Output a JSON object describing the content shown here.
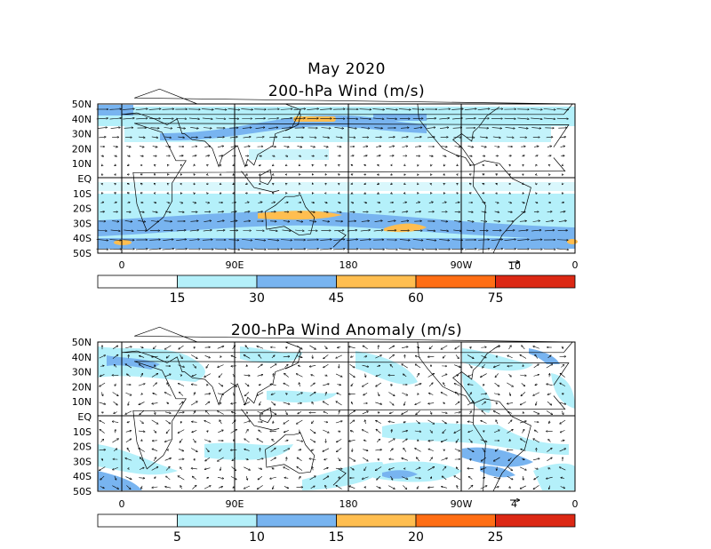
{
  "header": {
    "date": "May 2020",
    "top_title": "200-hPa Wind (m/s)",
    "bottom_title": "200-hPa Wind Anomaly (m/s)"
  },
  "axes": {
    "lat_labels": [
      "50N",
      "40N",
      "30N",
      "20N",
      "10N",
      "EQ",
      "10S",
      "20S",
      "30S",
      "40S",
      "50S"
    ],
    "lon_labels": [
      "0",
      "90E",
      "180",
      "90W",
      "0"
    ]
  },
  "top_panel": {
    "reference_vector": "10",
    "colorbar_labels": [
      "15",
      "30",
      "45",
      "60",
      "75"
    ],
    "colors": [
      "#ffffff",
      "#b4f0fa",
      "#78b4f0",
      "#ffbe50",
      "#ff6e14",
      "#dc2814"
    ]
  },
  "bottom_panel": {
    "reference_vector": "4",
    "colorbar_labels": [
      "5",
      "10",
      "15",
      "20",
      "25"
    ],
    "colors": [
      "#ffffff",
      "#b4f0fa",
      "#78b4f0",
      "#ffbe50",
      "#ff6e14",
      "#dc2814"
    ]
  }
}
